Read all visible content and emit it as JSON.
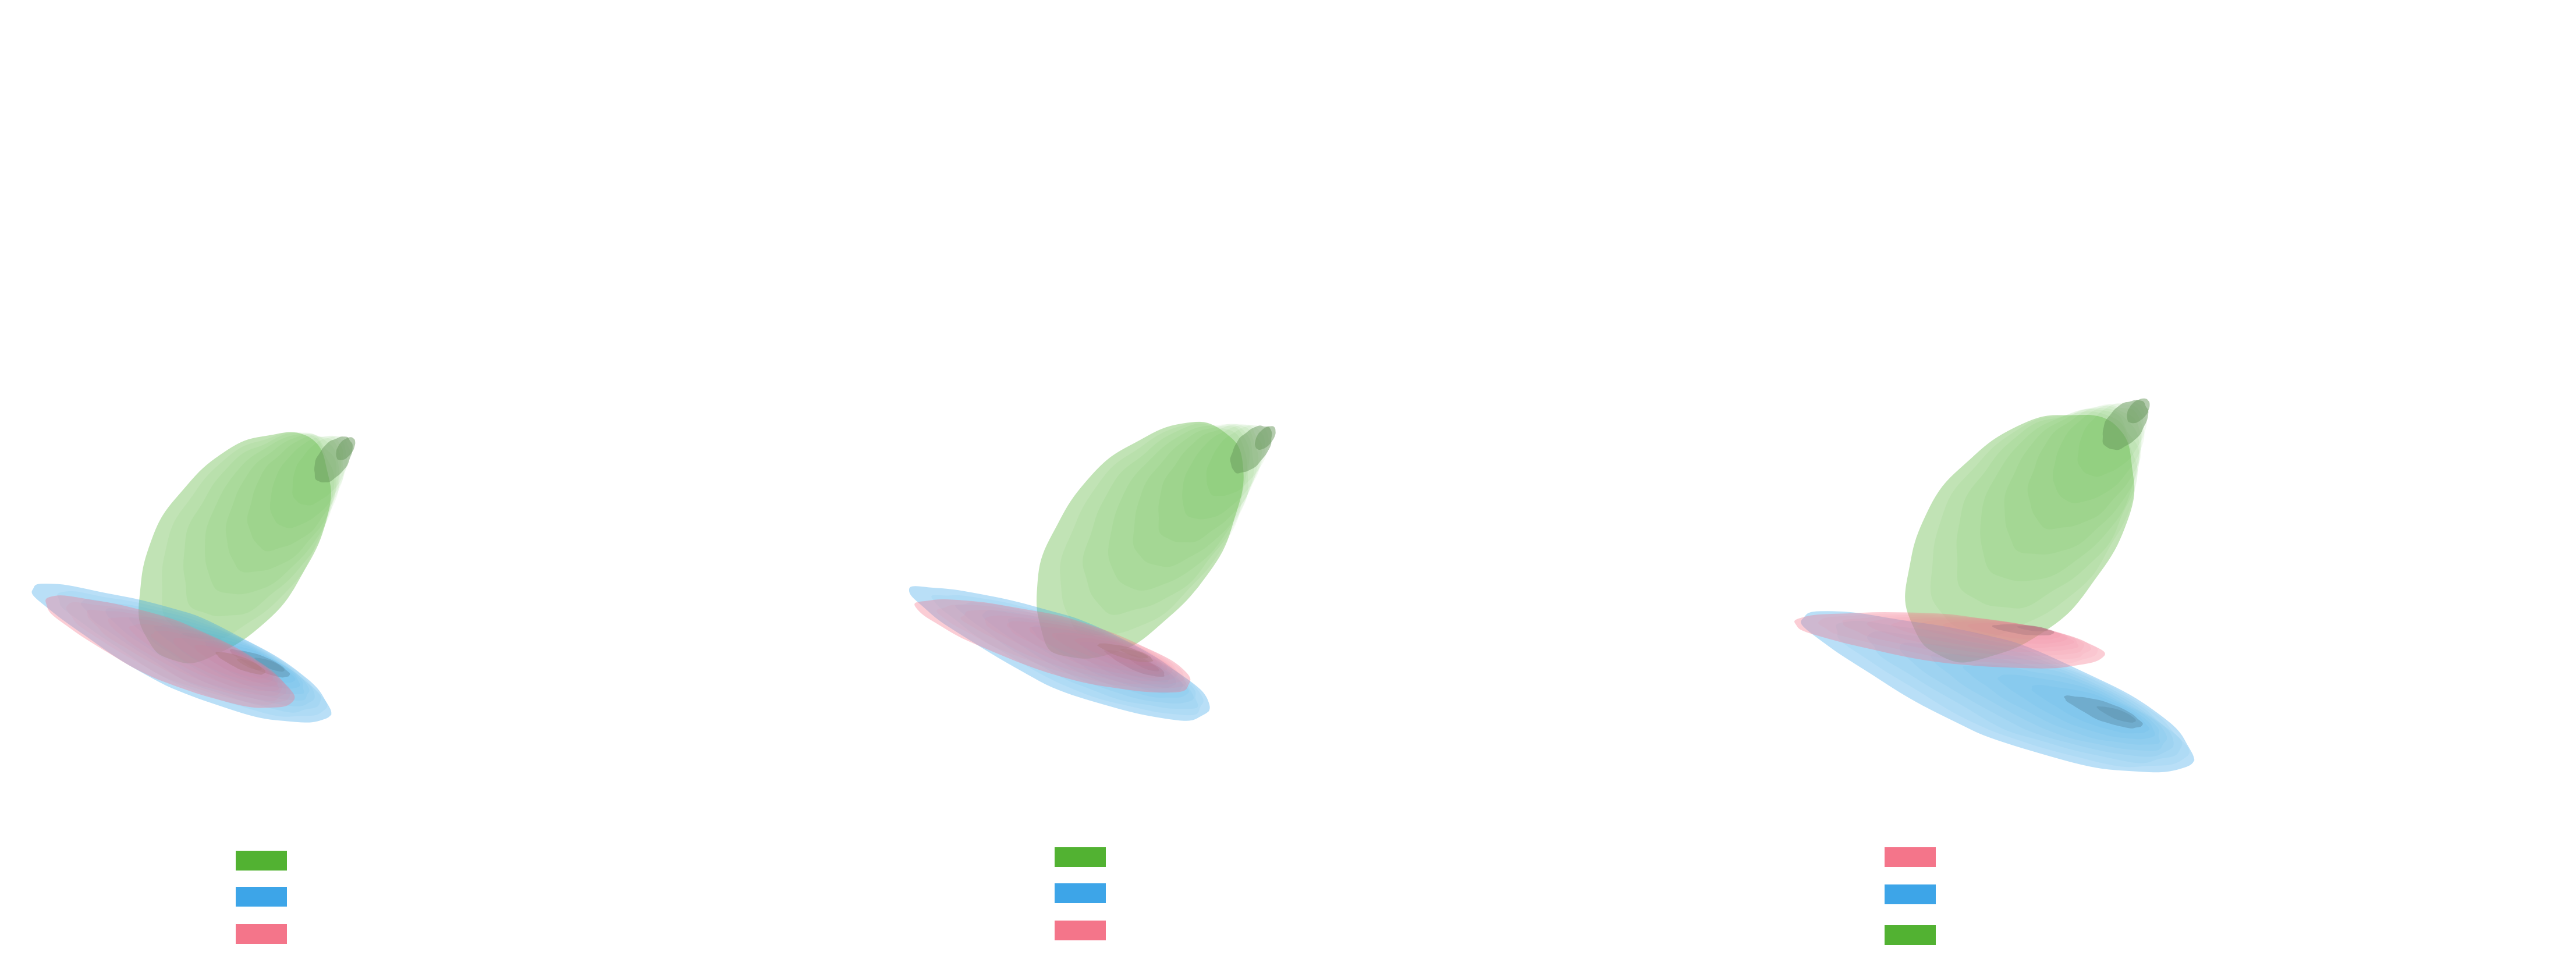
{
  "colors": {
    "green": "#52b232",
    "blue": "#3da5e8",
    "pink": "#f4758a"
  },
  "chart_data": [
    {
      "type": "density",
      "kind": "kde-contour",
      "filled": true,
      "title": "",
      "xlabel": "",
      "ylabel": "",
      "axes_visible": false,
      "legend_placement": "bottom-left",
      "legend_labels_visible": false,
      "legend": [
        {
          "color": "#52b232"
        },
        {
          "color": "#3da5e8"
        },
        {
          "color": "#f4758a"
        }
      ],
      "series": [
        {
          "color": "#52b232",
          "levels": 10,
          "peak": [
            0.55,
            0.62
          ],
          "spread": [
            0.34,
            0.66
          ],
          "tilt_deg": -55,
          "kurtosis": 0.2
        },
        {
          "color": "#3da5e8",
          "levels": 10,
          "peak": [
            0.4,
            0.22
          ],
          "spread": [
            0.52,
            0.21
          ],
          "tilt_deg": 23,
          "kurtosis": 0.9
        },
        {
          "color": "#f4758a",
          "levels": 10,
          "peak": [
            0.36,
            0.22
          ],
          "spread": [
            0.43,
            0.17
          ],
          "tilt_deg": 22,
          "kurtosis": 0.6
        }
      ]
    },
    {
      "type": "density",
      "kind": "kde-contour",
      "filled": true,
      "title": "",
      "xlabel": "",
      "ylabel": "",
      "axes_visible": false,
      "legend_placement": "bottom-left",
      "legend_labels_visible": false,
      "legend": [
        {
          "color": "#52b232"
        },
        {
          "color": "#3da5e8"
        },
        {
          "color": "#f4758a"
        }
      ],
      "series": [
        {
          "color": "#52b232",
          "levels": 10,
          "peak": [
            0.62,
            0.64
          ],
          "spread": [
            0.36,
            0.68
          ],
          "tilt_deg": -52,
          "kurtosis": 0.2
        },
        {
          "color": "#3da5e8",
          "levels": 10,
          "peak": [
            0.38,
            0.22
          ],
          "spread": [
            0.52,
            0.2
          ],
          "tilt_deg": 22,
          "kurtosis": 0.9
        },
        {
          "color": "#f4758a",
          "levels": 10,
          "peak": [
            0.36,
            0.24
          ],
          "spread": [
            0.46,
            0.16
          ],
          "tilt_deg": 16,
          "kurtosis": 0.6
        }
      ]
    },
    {
      "type": "density",
      "kind": "kde-contour",
      "filled": true,
      "title": "",
      "xlabel": "",
      "ylabel": "",
      "axes_visible": false,
      "legend_placement": "bottom-left",
      "legend_labels_visible": false,
      "legend": [
        {
          "color": "#f4758a"
        },
        {
          "color": "#3da5e8"
        },
        {
          "color": "#52b232"
        }
      ],
      "series": [
        {
          "color": "#52b232",
          "levels": 10,
          "peak": [
            0.56,
            0.68
          ],
          "spread": [
            0.36,
            0.7
          ],
          "tilt_deg": -50,
          "kurtosis": 0.2
        },
        {
          "color": "#3da5e8",
          "levels": 10,
          "peak": [
            0.52,
            0.18
          ],
          "spread": [
            0.64,
            0.24
          ],
          "tilt_deg": 20,
          "kurtosis": 0.9
        },
        {
          "color": "#f4758a",
          "levels": 10,
          "peak": [
            0.36,
            0.32
          ],
          "spread": [
            0.48,
            0.12
          ],
          "tilt_deg": 6,
          "kurtosis": 0.6
        }
      ]
    }
  ]
}
